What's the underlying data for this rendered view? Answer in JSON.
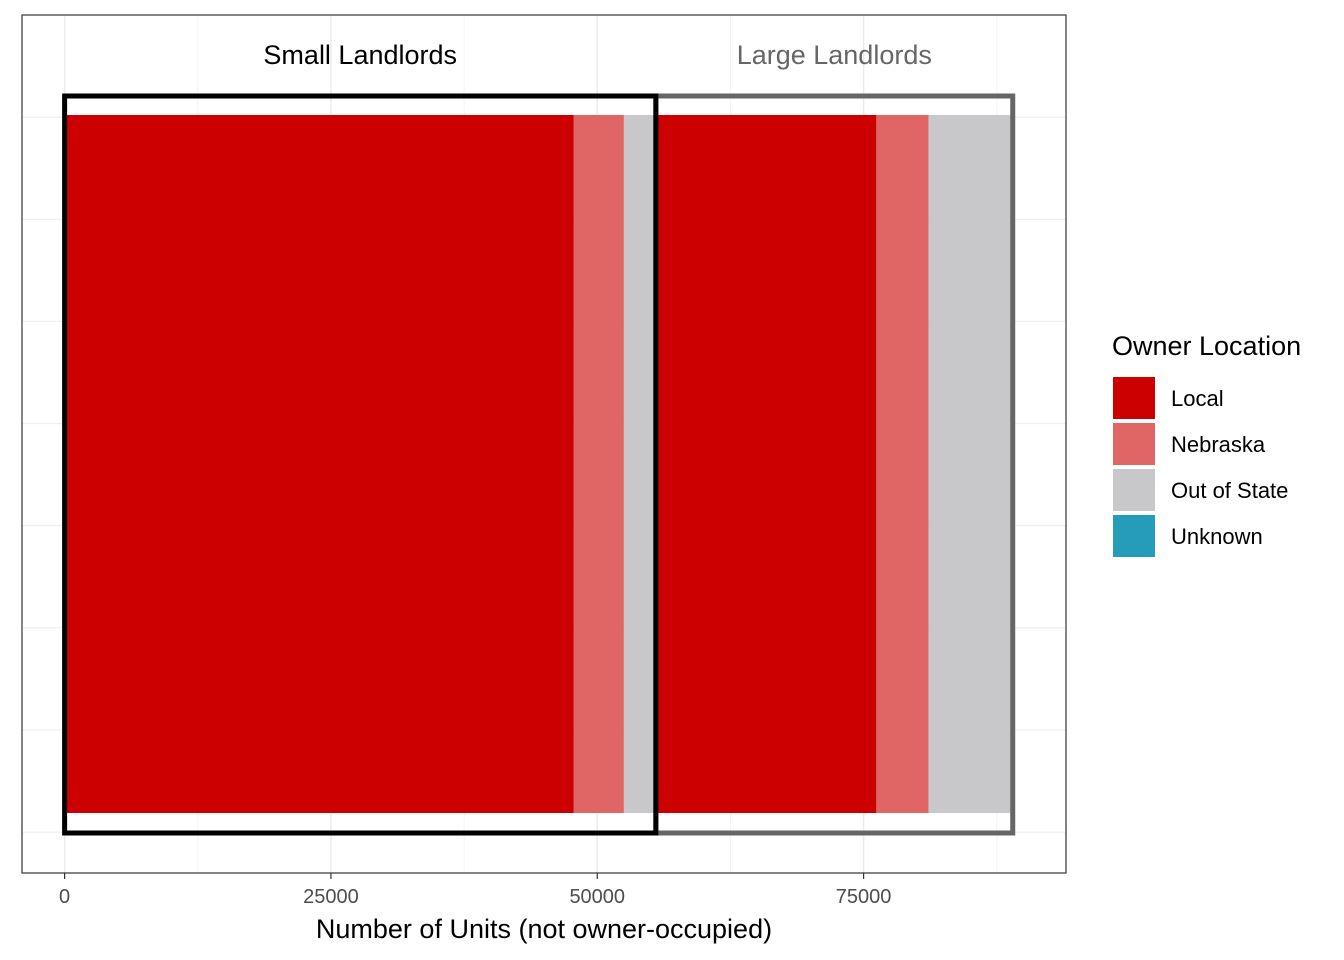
{
  "chart_data": {
    "type": "bar",
    "orientation": "horizontal-stacked",
    "xlabel": "Number of Units (not owner-occupied)",
    "ylabel": "",
    "xlim": [
      -4000,
      94000
    ],
    "xticks": [
      0,
      25000,
      50000,
      75000
    ],
    "grid": true,
    "legend": {
      "title": "Owner Location",
      "placement": "right",
      "entries": [
        {
          "name": "Local",
          "color": "#cc0000"
        },
        {
          "name": "Nebraska",
          "color": "#e06666"
        },
        {
          "name": "Out of State",
          "color": "#c8c8ca"
        },
        {
          "name": "Unknown",
          "color": "#279cba"
        }
      ]
    },
    "groups": [
      {
        "label": "Small Landlords",
        "label_color": "#000000",
        "box_color": "#000000",
        "range": [
          0,
          55500
        ],
        "segments": [
          {
            "series": "Local",
            "start": 0,
            "end": 47800
          },
          {
            "series": "Nebraska",
            "start": 47800,
            "end": 52500
          },
          {
            "series": "Out of State",
            "start": 52500,
            "end": 55300
          },
          {
            "series": "Unknown",
            "start": 55300,
            "end": 55400
          }
        ]
      },
      {
        "label": "Large Landlords",
        "label_color": "#666666",
        "box_color": "#666666",
        "range": [
          55500,
          89000
        ],
        "segments": [
          {
            "series": "Local",
            "start": 55600,
            "end": 76200
          },
          {
            "series": "Nebraska",
            "start": 76200,
            "end": 81100
          },
          {
            "series": "Out of State",
            "start": 81100,
            "end": 88900
          }
        ]
      }
    ]
  }
}
